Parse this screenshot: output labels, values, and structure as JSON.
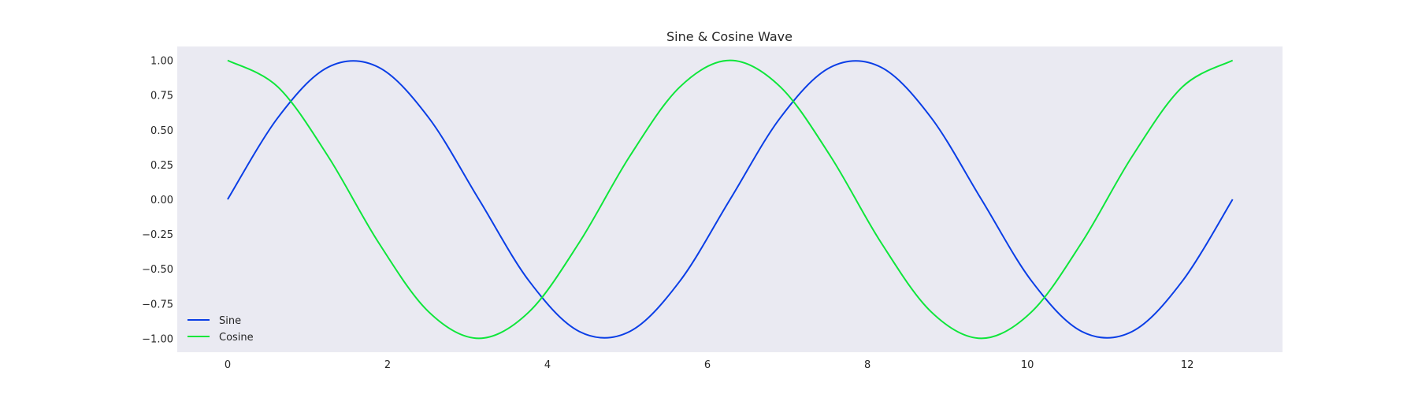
{
  "chart_data": {
    "type": "line",
    "title": "Sine & Cosine Wave",
    "xlabel": "",
    "ylabel": "",
    "xlim": [
      -0.63,
      13.19
    ],
    "ylim": [
      -1.1,
      1.1
    ],
    "xticks": [
      0,
      2,
      4,
      6,
      8,
      10,
      12
    ],
    "xtick_labels": [
      "0",
      "2",
      "4",
      "6",
      "8",
      "10",
      "12"
    ],
    "yticks": [
      1.0,
      0.75,
      0.5,
      0.25,
      0.0,
      -0.25,
      -0.5,
      -0.75,
      -1.0
    ],
    "ytick_labels": [
      "1.00",
      "0.75",
      "0.50",
      "0.25",
      "0.00",
      "−0.25",
      "−0.50",
      "−0.75",
      "−1.00"
    ],
    "grid": false,
    "background": "#eaeaf2",
    "legend_position": "lower-left",
    "x": [
      0,
      0.6283,
      1.2566,
      1.885,
      2.5133,
      3.1416,
      3.7699,
      4.3982,
      5.0265,
      5.6549,
      6.2832,
      6.9115,
      7.5398,
      8.1681,
      8.7965,
      9.4248,
      10.0531,
      10.6814,
      11.3097,
      11.938,
      12.5664
    ],
    "series": [
      {
        "name": "Sine",
        "color": "#0a3ee6",
        "values": [
          0.0,
          0.588,
          0.951,
          0.951,
          0.588,
          0.0,
          -0.588,
          -0.951,
          -0.951,
          -0.588,
          0.0,
          0.588,
          0.951,
          0.951,
          0.588,
          0.0,
          -0.588,
          -0.951,
          -0.951,
          -0.588,
          0.0
        ]
      },
      {
        "name": "Cosine",
        "color": "#0ee63a",
        "values": [
          1.0,
          0.809,
          0.309,
          -0.309,
          -0.809,
          -1.0,
          -0.809,
          -0.309,
          0.309,
          0.809,
          1.0,
          0.809,
          0.309,
          -0.309,
          -0.809,
          -1.0,
          -0.809,
          -0.309,
          0.309,
          0.809,
          1.0
        ]
      }
    ]
  }
}
